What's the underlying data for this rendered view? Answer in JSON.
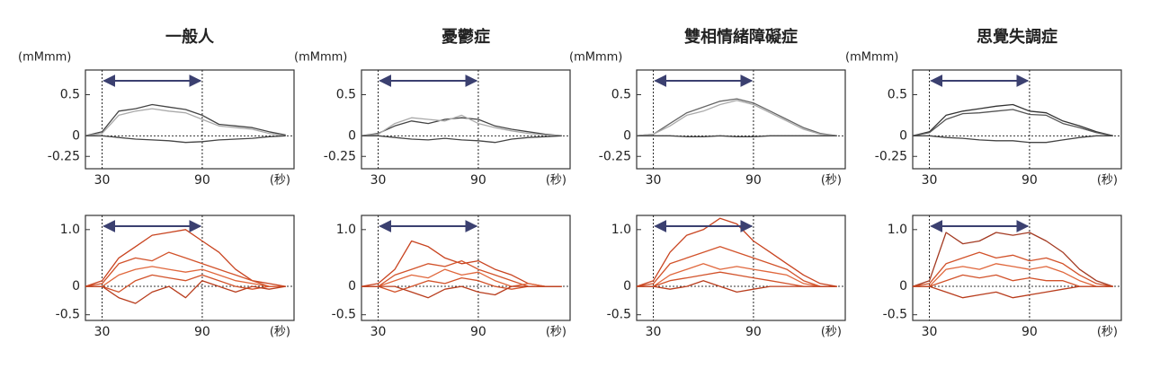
{
  "chart_data": [
    {
      "type": "line",
      "title": "一般人",
      "y_unit": "(mMmm)",
      "x_unit": "(秒)",
      "x": [
        20,
        30,
        40,
        50,
        60,
        70,
        80,
        90,
        100,
        110,
        120,
        130,
        140
      ],
      "xlim": [
        20,
        145
      ],
      "xticks": [
        30,
        90
      ],
      "ylim": [
        -0.4,
        0.8
      ],
      "yticks": [
        0.5,
        0,
        -0.25
      ],
      "xgrid": true,
      "series": [
        {
          "color": "#444444",
          "values": [
            0,
            0.05,
            0.3,
            0.33,
            0.38,
            0.35,
            0.32,
            0.25,
            0.14,
            0.12,
            0.1,
            0.05,
            0.01
          ]
        },
        {
          "color": "#aaaaaa",
          "values": [
            0,
            0.03,
            0.25,
            0.3,
            0.33,
            0.3,
            0.28,
            0.2,
            0.12,
            0.1,
            0.08,
            0.03,
            0
          ]
        },
        {
          "color": "#444444",
          "values": [
            0,
            0,
            -0.02,
            -0.04,
            -0.05,
            -0.06,
            -0.08,
            -0.07,
            -0.05,
            -0.04,
            -0.03,
            -0.01,
            0
          ]
        }
      ]
    },
    {
      "type": "line",
      "title": "憂鬱症",
      "y_unit": "(mMmm)",
      "x_unit": "(秒)",
      "x": [
        20,
        30,
        40,
        50,
        60,
        70,
        80,
        90,
        100,
        110,
        120,
        130,
        140
      ],
      "xlim": [
        20,
        145
      ],
      "xticks": [
        30,
        90
      ],
      "ylim": [
        -0.4,
        0.8
      ],
      "yticks": [
        0.5,
        0,
        -0.25
      ],
      "xgrid": true,
      "series": [
        {
          "color": "#444444",
          "values": [
            0,
            0.03,
            0.12,
            0.18,
            0.15,
            0.2,
            0.22,
            0.2,
            0.12,
            0.08,
            0.05,
            0.02,
            0
          ]
        },
        {
          "color": "#aaaaaa",
          "values": [
            0,
            0.02,
            0.15,
            0.22,
            0.2,
            0.18,
            0.25,
            0.15,
            0.1,
            0.06,
            0.03,
            0.01,
            0
          ]
        },
        {
          "color": "#444444",
          "values": [
            0,
            0,
            -0.02,
            -0.04,
            -0.05,
            -0.03,
            -0.05,
            -0.06,
            -0.08,
            -0.04,
            -0.02,
            -0.01,
            0
          ]
        }
      ]
    },
    {
      "type": "line",
      "title": "雙相情緒障礙症",
      "y_unit": "(mMmm)",
      "x_unit": "(秒)",
      "x": [
        20,
        30,
        40,
        50,
        60,
        70,
        80,
        90,
        100,
        110,
        120,
        130,
        140
      ],
      "xlim": [
        20,
        145
      ],
      "xticks": [
        30,
        90
      ],
      "ylim": [
        -0.4,
        0.8
      ],
      "yticks": [
        0.5,
        0,
        -0.25
      ],
      "xgrid": true,
      "series": [
        {
          "color": "#666666",
          "values": [
            0,
            0.02,
            0.15,
            0.28,
            0.35,
            0.42,
            0.45,
            0.4,
            0.3,
            0.2,
            0.1,
            0.03,
            0
          ]
        },
        {
          "color": "#aaaaaa",
          "values": [
            0,
            0.02,
            0.12,
            0.25,
            0.3,
            0.38,
            0.43,
            0.38,
            0.28,
            0.18,
            0.08,
            0.02,
            0
          ]
        },
        {
          "color": "#444444",
          "values": [
            0,
            0,
            0,
            -0.01,
            -0.01,
            0,
            -0.01,
            -0.01,
            0,
            0,
            0,
            0,
            0
          ]
        }
      ]
    },
    {
      "type": "line",
      "title": "思覺失調症",
      "y_unit": "(mMmm)",
      "x_unit": "(秒)",
      "x": [
        20,
        30,
        40,
        50,
        60,
        70,
        80,
        90,
        100,
        110,
        120,
        130,
        140
      ],
      "xlim": [
        20,
        145
      ],
      "xticks": [
        30,
        90
      ],
      "ylim": [
        -0.4,
        0.8
      ],
      "yticks": [
        0.5,
        0,
        -0.25
      ],
      "xgrid": true,
      "series": [
        {
          "color": "#333333",
          "values": [
            0,
            0.05,
            0.25,
            0.3,
            0.33,
            0.36,
            0.38,
            0.3,
            0.28,
            0.18,
            0.12,
            0.05,
            0
          ]
        },
        {
          "color": "#555555",
          "values": [
            0,
            0.04,
            0.2,
            0.27,
            0.28,
            0.3,
            0.32,
            0.26,
            0.25,
            0.15,
            0.1,
            0.04,
            0
          ]
        },
        {
          "color": "#444444",
          "values": [
            0,
            0,
            -0.02,
            -0.03,
            -0.05,
            -0.06,
            -0.06,
            -0.08,
            -0.08,
            -0.05,
            -0.02,
            0,
            0
          ]
        }
      ]
    },
    {
      "type": "line",
      "x_unit": "(秒)",
      "x": [
        20,
        30,
        40,
        50,
        60,
        70,
        80,
        90,
        100,
        110,
        120,
        130,
        140
      ],
      "xlim": [
        20,
        145
      ],
      "xticks": [
        30,
        90
      ],
      "ylim": [
        -0.6,
        1.25
      ],
      "yticks": [
        {
          "value": 1,
          "label": "1.0"
        },
        0,
        -0.5
      ],
      "xgrid": true,
      "series": [
        {
          "color": "#c8431f",
          "values": [
            0,
            0.1,
            0.5,
            0.7,
            0.9,
            0.95,
            1.0,
            0.8,
            0.6,
            0.3,
            0.1,
            0.05,
            0
          ]
        },
        {
          "color": "#d2522a",
          "values": [
            0,
            0.05,
            0.4,
            0.5,
            0.45,
            0.6,
            0.5,
            0.4,
            0.3,
            0.2,
            0.1,
            0,
            0
          ]
        },
        {
          "color": "#e0673c",
          "values": [
            0,
            0,
            0.2,
            0.3,
            0.35,
            0.3,
            0.25,
            0.3,
            0.2,
            0.1,
            0.05,
            0,
            0
          ]
        },
        {
          "color": "#d2522a",
          "values": [
            0,
            0,
            -0.1,
            0.1,
            0.2,
            0.15,
            0.1,
            0.2,
            0.1,
            0,
            -0.05,
            0,
            0
          ]
        },
        {
          "color": "#b83c1c",
          "values": [
            0,
            0,
            -0.2,
            -0.3,
            -0.1,
            0,
            -0.2,
            0.1,
            0,
            -0.1,
            0,
            -0.05,
            0
          ]
        }
      ]
    },
    {
      "type": "line",
      "x_unit": "(秒)",
      "x": [
        20,
        30,
        40,
        50,
        60,
        70,
        80,
        90,
        100,
        110,
        120,
        130,
        140
      ],
      "xlim": [
        20,
        145
      ],
      "xticks": [
        30,
        90
      ],
      "ylim": [
        -0.6,
        1.25
      ],
      "yticks": [
        {
          "value": 1,
          "label": "1.0"
        },
        0,
        -0.5
      ],
      "xgrid": true,
      "series": [
        {
          "color": "#c8431f",
          "values": [
            0,
            0.05,
            0.3,
            0.8,
            0.7,
            0.5,
            0.4,
            0.45,
            0.3,
            0.2,
            0.05,
            0,
            0
          ]
        },
        {
          "color": "#d2522a",
          "values": [
            0,
            0,
            0.2,
            0.3,
            0.4,
            0.35,
            0.45,
            0.3,
            0.2,
            0.1,
            0,
            0,
            0
          ]
        },
        {
          "color": "#e0673c",
          "values": [
            0,
            0,
            0.1,
            0.2,
            0.15,
            0.3,
            0.2,
            0.25,
            0.1,
            0,
            0.05,
            0,
            0
          ]
        },
        {
          "color": "#d2522a",
          "values": [
            0,
            0,
            -0.1,
            0,
            0.1,
            0.05,
            0.15,
            0.1,
            0,
            -0.05,
            0,
            0,
            0
          ]
        },
        {
          "color": "#b83c1c",
          "values": [
            0,
            0,
            0,
            -0.1,
            -0.2,
            -0.05,
            0,
            -0.1,
            -0.15,
            0,
            0,
            0,
            0
          ]
        }
      ]
    },
    {
      "type": "line",
      "x_unit": "(秒)",
      "x": [
        20,
        30,
        40,
        50,
        60,
        70,
        80,
        90,
        100,
        110,
        120,
        130,
        140
      ],
      "xlim": [
        20,
        145
      ],
      "xticks": [
        30,
        90
      ],
      "ylim": [
        -0.6,
        1.25
      ],
      "yticks": [
        {
          "value": 1,
          "label": "1.0"
        },
        0,
        -0.5
      ],
      "xgrid": true,
      "series": [
        {
          "color": "#c8431f",
          "values": [
            0,
            0.1,
            0.6,
            0.9,
            1.0,
            1.2,
            1.1,
            0.8,
            0.6,
            0.4,
            0.2,
            0.05,
            0
          ]
        },
        {
          "color": "#d2522a",
          "values": [
            0,
            0.05,
            0.4,
            0.5,
            0.6,
            0.7,
            0.6,
            0.5,
            0.4,
            0.3,
            0.1,
            0,
            0
          ]
        },
        {
          "color": "#e0673c",
          "values": [
            0,
            0,
            0.2,
            0.3,
            0.4,
            0.3,
            0.35,
            0.3,
            0.25,
            0.2,
            0.05,
            0,
            0
          ]
        },
        {
          "color": "#d2522a",
          "values": [
            0,
            0,
            0.1,
            0.15,
            0.2,
            0.25,
            0.2,
            0.15,
            0.1,
            0.05,
            0,
            0,
            0
          ]
        },
        {
          "color": "#b83c1c",
          "values": [
            0,
            0,
            -0.05,
            0,
            0.1,
            0,
            -0.1,
            -0.05,
            0,
            0,
            0,
            0,
            0
          ]
        }
      ]
    },
    {
      "type": "line",
      "x_unit": "(秒)",
      "x": [
        20,
        30,
        40,
        50,
        60,
        70,
        80,
        90,
        100,
        110,
        120,
        130,
        140
      ],
      "xlim": [
        20,
        145
      ],
      "xticks": [
        30,
        90
      ],
      "ylim": [
        -0.6,
        1.25
      ],
      "yticks": [
        {
          "value": 1,
          "label": "1.0"
        },
        0,
        -0.5
      ],
      "xgrid": true,
      "series": [
        {
          "color": "#a33a22",
          "values": [
            0,
            0.1,
            0.95,
            0.75,
            0.8,
            0.95,
            0.9,
            0.95,
            0.8,
            0.6,
            0.3,
            0.1,
            0
          ]
        },
        {
          "color": "#d2522a",
          "values": [
            0,
            0.05,
            0.4,
            0.5,
            0.6,
            0.5,
            0.55,
            0.45,
            0.5,
            0.4,
            0.2,
            0.05,
            0
          ]
        },
        {
          "color": "#e0673c",
          "values": [
            0,
            0,
            0.3,
            0.35,
            0.3,
            0.4,
            0.35,
            0.3,
            0.35,
            0.25,
            0.1,
            0,
            0
          ]
        },
        {
          "color": "#d2522a",
          "values": [
            0,
            0,
            0.1,
            0.2,
            0.15,
            0.2,
            0.1,
            0.15,
            0.1,
            0.1,
            0,
            0,
            0
          ]
        },
        {
          "color": "#b83c1c",
          "values": [
            0,
            0,
            -0.1,
            -0.2,
            -0.15,
            -0.1,
            -0.2,
            -0.15,
            -0.1,
            -0.05,
            0,
            0,
            0
          ]
        }
      ]
    }
  ]
}
